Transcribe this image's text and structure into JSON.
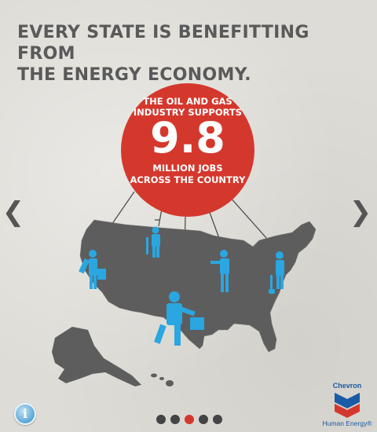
{
  "headline": {
    "line1": "EVERY STATE IS BENEFITTING FROM",
    "line2": "THE ENERGY ECONOMY."
  },
  "stat": {
    "top_line1": "THE OIL AND GAS",
    "top_line2": "INDUSTRY SUPPORTS",
    "number": "9.8",
    "bottom_line1": "MILLION JOBS",
    "bottom_line2": "ACROSS THE COUNTRY"
  },
  "nav": {
    "prev": "❮",
    "next": "❯"
  },
  "info": {
    "label": "i"
  },
  "pager": {
    "count": 5,
    "active": 3
  },
  "brand": {
    "name": "Chevron",
    "tagline": "Human Energy®"
  },
  "colors": {
    "accent": "#d4382d",
    "worker": "#2aa6e0",
    "map": "#5d5d5d",
    "brand": "#1b5aa6"
  },
  "icons": [
    "chevron-left-icon",
    "chevron-right-icon",
    "info-icon",
    "worker-icon",
    "chevron-logo-icon"
  ]
}
